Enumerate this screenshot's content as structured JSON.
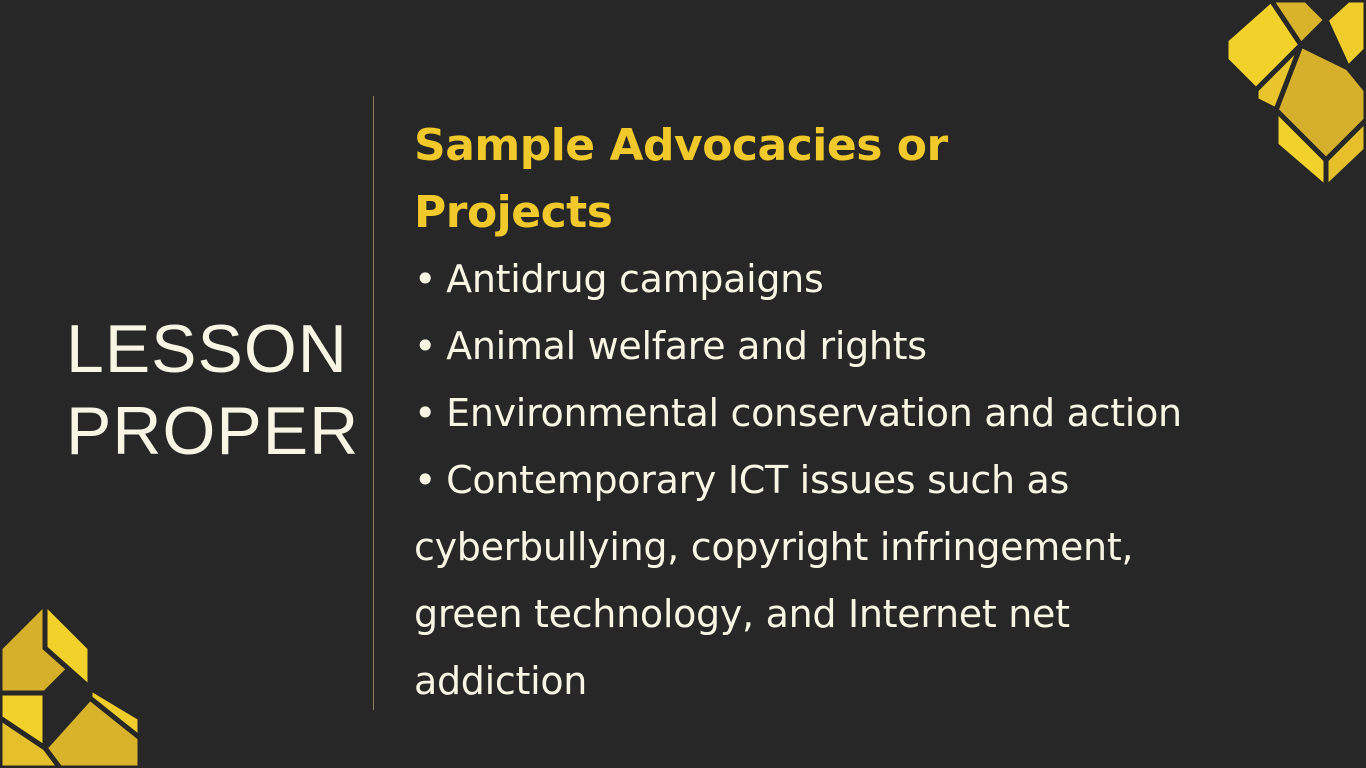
{
  "side_title": {
    "line1": "LESSON",
    "line2": "PROPER"
  },
  "heading": "Sample Advocacies or Projects",
  "bullets": [
    "Antidrug campaigns",
    "Animal welfare and rights",
    "Environmental conservation and action",
    "Contemporary ICT issues such as"
  ],
  "continuation_lines": [
    "cyberbullying, copyright infringement,",
    "green technology, and Internet net",
    "addiction"
  ],
  "bullet_glyph": "•",
  "colors": {
    "background": "#262726",
    "accent": "#f1c92a",
    "text": "#f8f5e4",
    "divider": "#8a8066",
    "deco_dark": "#d6b02a",
    "deco_light": "#f3d12b"
  }
}
